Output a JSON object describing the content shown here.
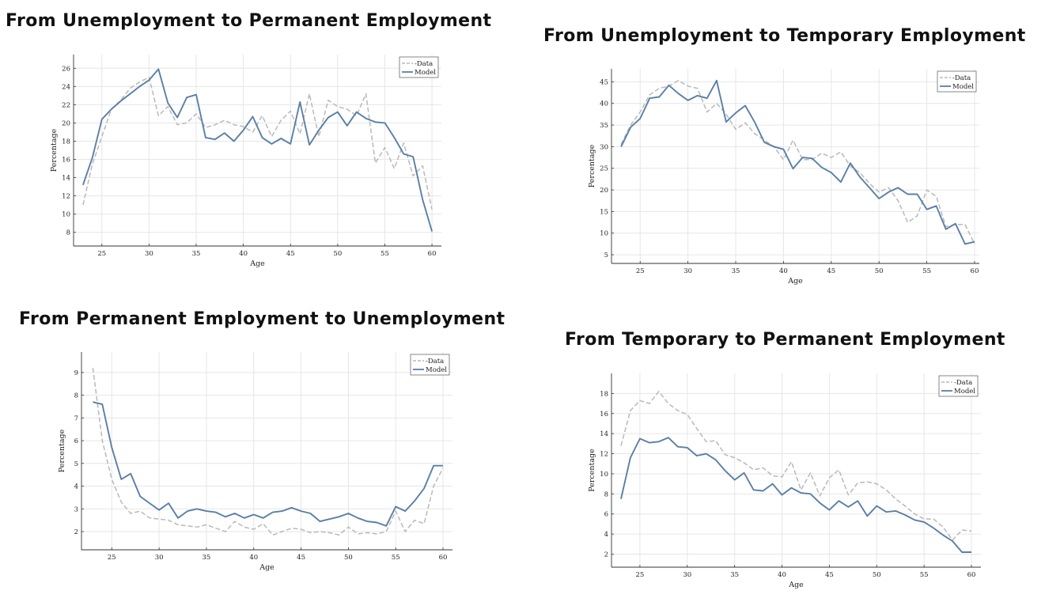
{
  "chart_data": [
    {
      "type": "line",
      "title": "From Unemployment to Permanent Employment",
      "xlabel": "Age",
      "ylabel": "Percentage",
      "xlim": [
        22,
        61
      ],
      "ylim": [
        6.5,
        27.5
      ],
      "xticks": [
        25,
        30,
        35,
        40,
        45,
        50,
        55,
        60
      ],
      "yticks": [
        8,
        10,
        12,
        14,
        16,
        18,
        20,
        22,
        24,
        26
      ],
      "grid": true,
      "legend": "top-right",
      "x": [
        23,
        24,
        25,
        26,
        27,
        28,
        29,
        30,
        31,
        32,
        33,
        34,
        35,
        36,
        37,
        38,
        39,
        40,
        41,
        42,
        43,
        44,
        45,
        46,
        47,
        48,
        49,
        50,
        51,
        52,
        53,
        54,
        55,
        56,
        57,
        58,
        59,
        60
      ],
      "series": [
        {
          "name": "-Data",
          "style": "dashed",
          "color": "#b9b9b9",
          "values": [
            11.0,
            15.5,
            18.5,
            21.5,
            22.5,
            23.8,
            24.5,
            25.0,
            20.8,
            21.8,
            19.8,
            20.0,
            21.0,
            19.5,
            19.8,
            20.3,
            19.8,
            19.6,
            19.0,
            20.8,
            18.5,
            20.3,
            21.3,
            18.8,
            23.2,
            18.5,
            22.5,
            21.8,
            21.5,
            20.8,
            23.2,
            15.6,
            17.3,
            15.0,
            17.8,
            14.2,
            15.3,
            10.5
          ]
        },
        {
          "name": "Model",
          "style": "solid",
          "color": "#5a7fa6",
          "values": [
            13.2,
            16.2,
            20.4,
            21.5,
            22.4,
            23.2,
            24.0,
            24.7,
            25.9,
            22.2,
            20.6,
            22.8,
            23.1,
            18.4,
            18.2,
            18.9,
            18.0,
            19.2,
            20.7,
            18.4,
            17.7,
            18.3,
            17.7,
            22.3,
            17.6,
            19.2,
            20.6,
            21.2,
            19.7,
            21.2,
            20.5,
            20.1,
            20.0,
            18.4,
            16.6,
            16.3,
            11.6,
            8.1
          ]
        }
      ]
    },
    {
      "type": "line",
      "title": "From Unemployment to Temporary Employment",
      "xlabel": "Age",
      "ylabel": "Percentage",
      "xlim": [
        22,
        60.5
      ],
      "ylim": [
        3,
        48
      ],
      "xticks": [
        25,
        30,
        35,
        40,
        45,
        50,
        55,
        60
      ],
      "yticks": [
        5,
        10,
        15,
        20,
        25,
        30,
        35,
        40,
        45
      ],
      "grid": true,
      "legend": "top-right",
      "x": [
        23,
        24,
        25,
        26,
        27,
        28,
        29,
        30,
        31,
        32,
        33,
        34,
        35,
        36,
        37,
        38,
        39,
        40,
        41,
        42,
        43,
        44,
        45,
        46,
        47,
        48,
        49,
        50,
        51,
        52,
        53,
        54,
        55,
        56,
        57,
        58,
        59,
        60
      ],
      "series": [
        {
          "name": "-Data",
          "style": "dashed",
          "color": "#b9b9b9",
          "values": [
            30.5,
            35.0,
            38.0,
            42.0,
            43.5,
            44.0,
            45.3,
            44.0,
            43.5,
            38.0,
            40.0,
            37.5,
            34.0,
            35.5,
            33.0,
            31.5,
            30.0,
            27.0,
            31.5,
            27.0,
            27.0,
            28.5,
            27.5,
            28.8,
            25.5,
            24.0,
            21.5,
            19.5,
            20.5,
            17.5,
            12.5,
            14.0,
            20.0,
            18.5,
            11.5,
            12.0,
            12.0,
            7.5
          ]
        },
        {
          "name": "Model",
          "style": "solid",
          "color": "#5a7fa6",
          "values": [
            30.0,
            34.5,
            36.5,
            41.2,
            41.5,
            44.2,
            42.3,
            40.7,
            41.8,
            41.2,
            45.3,
            35.7,
            37.8,
            39.5,
            35.6,
            31.0,
            30.0,
            29.4,
            24.9,
            27.5,
            27.3,
            25.2,
            24.0,
            21.8,
            26.2,
            23.0,
            20.5,
            18.0,
            19.5,
            20.5,
            19.0,
            19.0,
            15.5,
            16.3,
            10.9,
            12.2,
            7.5,
            8.0
          ]
        }
      ]
    },
    {
      "type": "line",
      "title": "From Permanent Employment to Unemployment",
      "xlabel": "Age",
      "ylabel": "Percentage",
      "xlim": [
        21.8,
        61
      ],
      "ylim": [
        1.2,
        9.9
      ],
      "xticks": [
        25,
        30,
        35,
        40,
        45,
        50,
        55,
        60
      ],
      "yticks": [
        2,
        3,
        4,
        5,
        6,
        7,
        8,
        9
      ],
      "grid": true,
      "legend": "top-right",
      "x": [
        23,
        24,
        25,
        26,
        27,
        28,
        29,
        30,
        31,
        32,
        33,
        34,
        35,
        36,
        37,
        38,
        39,
        40,
        41,
        42,
        43,
        44,
        45,
        46,
        47,
        48,
        49,
        50,
        51,
        52,
        53,
        54,
        55,
        56,
        57,
        58,
        59,
        60
      ],
      "series": [
        {
          "name": "-Data",
          "style": "dashed",
          "color": "#b9b9b9",
          "values": [
            9.2,
            6.0,
            4.3,
            3.3,
            2.8,
            2.9,
            2.6,
            2.55,
            2.5,
            2.3,
            2.25,
            2.2,
            2.3,
            2.15,
            2.0,
            2.45,
            2.2,
            2.1,
            2.35,
            1.85,
            2.0,
            2.15,
            2.1,
            1.95,
            2.0,
            1.95,
            1.85,
            2.2,
            1.9,
            1.95,
            1.9,
            2.0,
            2.9,
            2.0,
            2.5,
            2.35,
            4.0,
            4.8
          ]
        },
        {
          "name": "Model",
          "style": "solid",
          "color": "#5a7fa6",
          "values": [
            7.7,
            7.6,
            5.7,
            4.3,
            4.55,
            3.55,
            3.25,
            2.95,
            3.25,
            2.6,
            2.9,
            3.0,
            2.9,
            2.85,
            2.65,
            2.8,
            2.6,
            2.75,
            2.6,
            2.85,
            2.9,
            3.05,
            2.9,
            2.8,
            2.45,
            2.55,
            2.65,
            2.8,
            2.6,
            2.45,
            2.4,
            2.25,
            3.1,
            2.9,
            3.35,
            3.9,
            4.9,
            4.9
          ]
        }
      ]
    },
    {
      "type": "line",
      "title": "From Temporary to Permanent Employment",
      "xlabel": "Age",
      "ylabel": "Percentage",
      "xlim": [
        22,
        61
      ],
      "ylim": [
        0.7,
        20
      ],
      "xticks": [
        25,
        30,
        35,
        40,
        45,
        50,
        55,
        60
      ],
      "yticks": [
        2,
        4,
        6,
        8,
        10,
        12,
        14,
        16,
        18
      ],
      "grid": true,
      "legend": "top-right",
      "x": [
        23,
        24,
        25,
        26,
        27,
        28,
        29,
        30,
        31,
        32,
        33,
        34,
        35,
        36,
        37,
        38,
        39,
        40,
        41,
        42,
        43,
        44,
        45,
        46,
        47,
        48,
        49,
        50,
        51,
        52,
        53,
        54,
        55,
        56,
        57,
        58,
        59,
        60
      ],
      "series": [
        {
          "name": "-Data",
          "style": "dashed",
          "color": "#b9b9b9",
          "values": [
            12.8,
            16.3,
            17.3,
            17.0,
            18.2,
            17.0,
            16.3,
            15.9,
            14.5,
            13.2,
            13.3,
            11.9,
            11.6,
            11.1,
            10.4,
            10.6,
            9.8,
            9.7,
            11.2,
            8.4,
            10.1,
            7.8,
            9.6,
            10.4,
            7.9,
            9.1,
            9.2,
            9.0,
            8.4,
            7.5,
            6.8,
            6.0,
            5.5,
            5.5,
            4.7,
            3.4,
            4.4,
            4.3
          ]
        },
        {
          "name": "Model",
          "style": "solid",
          "color": "#5a7fa6",
          "values": [
            7.5,
            11.6,
            13.5,
            13.1,
            13.2,
            13.6,
            12.7,
            12.6,
            11.8,
            12.0,
            11.4,
            10.3,
            9.4,
            10.1,
            8.4,
            8.3,
            9.0,
            7.9,
            8.6,
            8.1,
            8.0,
            7.1,
            6.4,
            7.3,
            6.7,
            7.3,
            5.8,
            6.8,
            6.2,
            6.3,
            5.9,
            5.4,
            5.2,
            4.6,
            3.9,
            3.3,
            2.2,
            2.2
          ]
        }
      ]
    }
  ]
}
